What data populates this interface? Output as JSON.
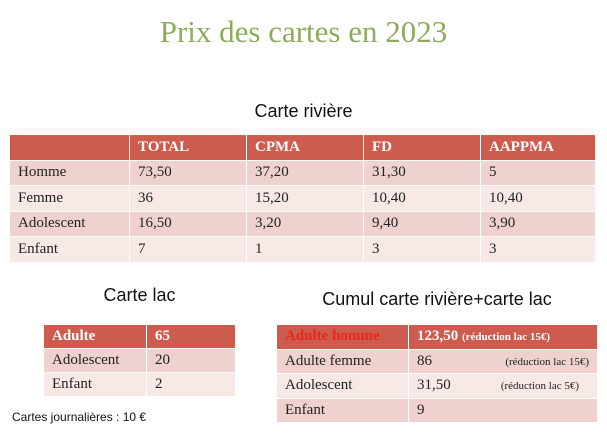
{
  "title": "Prix des cartes en 2023",
  "river": {
    "heading": "Carte rivière",
    "columns": [
      "",
      "TOTAL",
      "CPMA",
      "FD",
      "AAPPMA"
    ],
    "rows": [
      [
        "Homme",
        "73,50",
        "37,20",
        "31,30",
        "5"
      ],
      [
        "Femme",
        "36",
        "15,20",
        "10,40",
        "10,40"
      ],
      [
        "Adolescent",
        "16,50",
        "3,20",
        "9,40",
        "3,90"
      ],
      [
        "Enfant",
        "7",
        "1",
        "3",
        "3"
      ]
    ]
  },
  "lake": {
    "heading": "Carte lac",
    "header": [
      "Adulte",
      "65"
    ],
    "rows": [
      [
        "Adolescent",
        "20"
      ],
      [
        "Enfant",
        "2"
      ]
    ]
  },
  "cumul": {
    "heading": "Cumul carte rivière+carte lac",
    "header": {
      "label": "Adulte homme",
      "value": "123,50",
      "note": "(réduction lac 15€)"
    },
    "rows": [
      {
        "label": "Adulte femme",
        "value": "86",
        "note": "(réduction lac 15€)"
      },
      {
        "label": "Adolescent",
        "value": "31,50",
        "note": "(réduction lac 5€)"
      },
      {
        "label": "Enfant",
        "value": "9",
        "note": ""
      }
    ]
  },
  "daily": "Cartes journalières : 10 €",
  "colors": {
    "title": "#8cac5c",
    "header": "#cd5c4f",
    "row_dark": "#efd2cf",
    "row_light": "#f8e9e7",
    "highlight": "#e8261a"
  }
}
